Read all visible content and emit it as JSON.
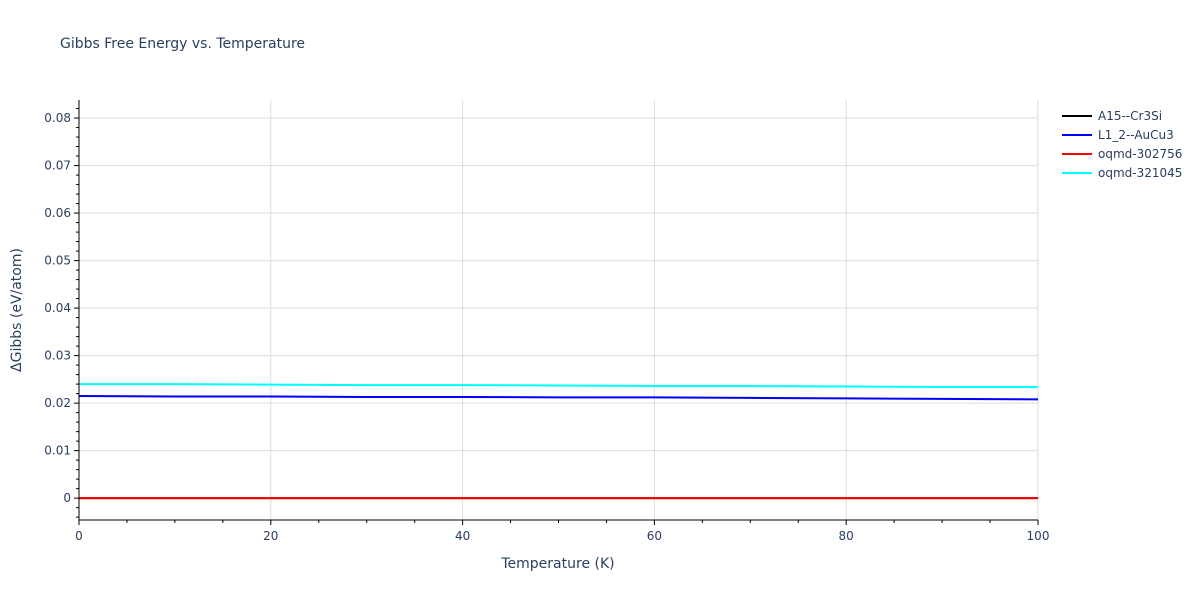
{
  "chart_data": {
    "type": "line",
    "title": "Gibbs Free Energy vs. Temperature",
    "xlabel": "Temperature (K)",
    "ylabel": "ΔGibbs (eV/atom)",
    "xlim": [
      0,
      100
    ],
    "ylim": [
      -0.0046,
      0.0838
    ],
    "grid": true,
    "legend_position": "right",
    "x_ticks": [
      0,
      20,
      40,
      60,
      80,
      100
    ],
    "x_tick_labels": [
      "0",
      "20",
      "40",
      "60",
      "80",
      "100"
    ],
    "y_ticks": [
      0,
      0.01,
      0.02,
      0.03,
      0.04,
      0.05,
      0.06,
      0.07,
      0.08
    ],
    "y_tick_labels": [
      "0",
      "0.01",
      "0.02",
      "0.03",
      "0.04",
      "0.05",
      "0.06",
      "0.07",
      "0.08"
    ],
    "x": [
      0,
      10,
      20,
      30,
      40,
      50,
      60,
      70,
      80,
      90,
      100
    ],
    "series": [
      {
        "name": "A15--Cr3Si",
        "color": "#000000",
        "values": [
          0,
          0,
          0,
          0,
          0,
          0,
          0,
          0,
          0,
          0,
          0
        ]
      },
      {
        "name": "L1_2--AuCu3",
        "color": "#0000ff",
        "values": [
          0.0215,
          0.0214,
          0.0214,
          0.0213,
          0.0213,
          0.0212,
          0.0212,
          0.0211,
          0.021,
          0.0209,
          0.0208
        ]
      },
      {
        "name": "oqmd-302756",
        "color": "#ff0000",
        "values": [
          0,
          0,
          0,
          0,
          0,
          0,
          0,
          0,
          0,
          0,
          0
        ]
      },
      {
        "name": "oqmd-321045",
        "color": "#00ffff",
        "values": [
          0.024,
          0.024,
          0.0239,
          0.0238,
          0.0238,
          0.0237,
          0.0236,
          0.0236,
          0.0235,
          0.0234,
          0.0234
        ]
      }
    ]
  }
}
